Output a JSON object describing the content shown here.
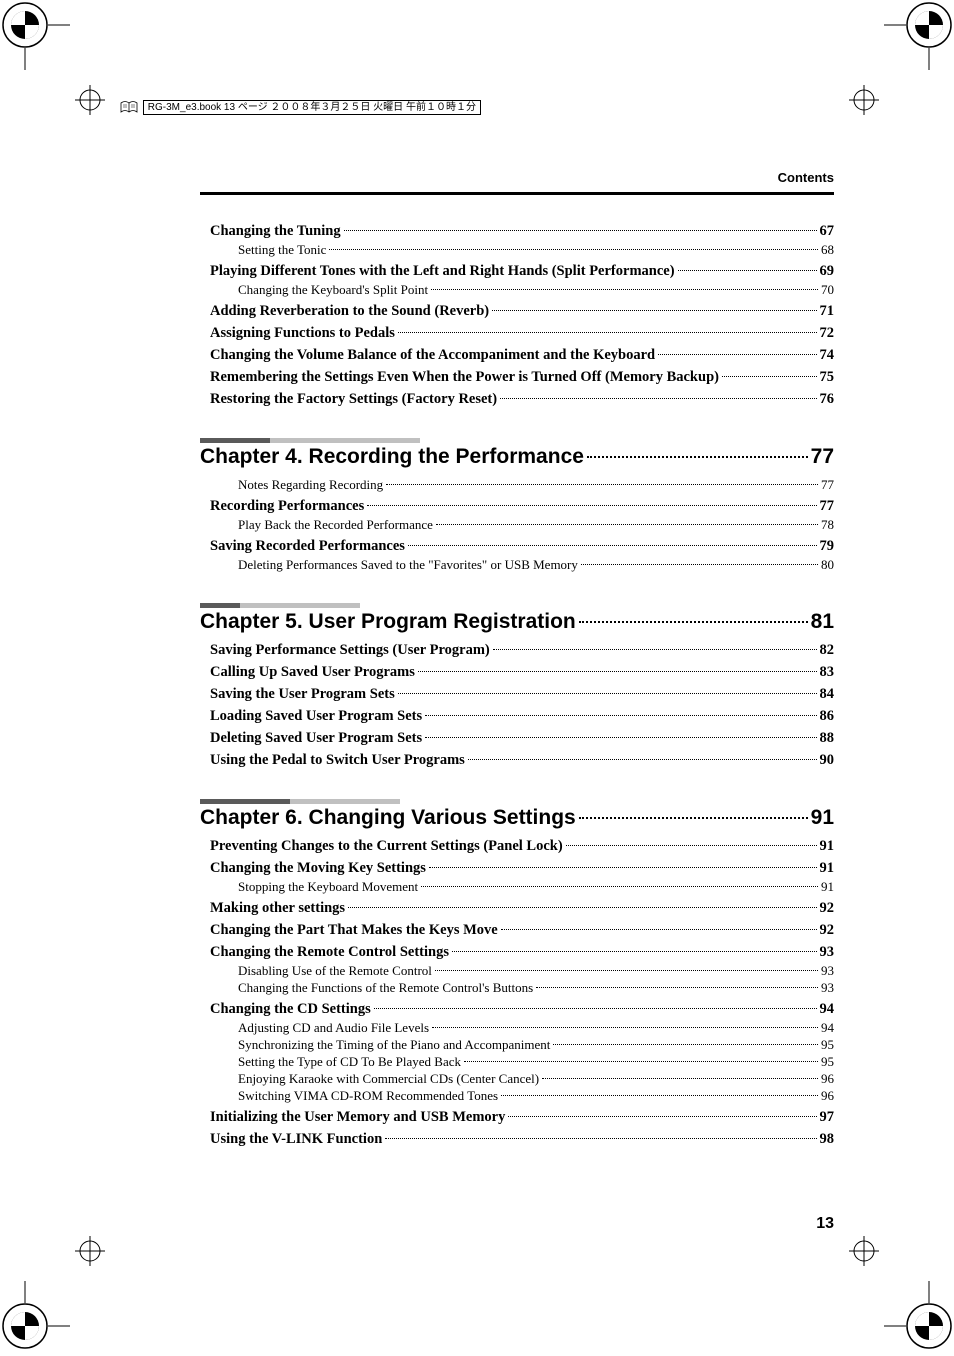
{
  "header": {
    "book_line": "RG-3M_e3.book 13 ページ ２００８年３月２５日 火曜日 午前１０時１分",
    "section_label": "Contents"
  },
  "intro_items": [
    {
      "level": 1,
      "label": "Changing the Tuning",
      "page": "67"
    },
    {
      "level": 2,
      "label": "Setting the Tonic",
      "page": "68"
    },
    {
      "level": 1,
      "label": "Playing Different Tones with the Left and Right Hands (Split Performance)",
      "page": "69"
    },
    {
      "level": 2,
      "label": "Changing the Keyboard's Split Point",
      "page": "70"
    },
    {
      "level": 1,
      "label": "Adding Reverberation to the Sound (Reverb)",
      "page": "71"
    },
    {
      "level": 1,
      "label": "Assigning Functions to Pedals",
      "page": "72"
    },
    {
      "level": 1,
      "label": "Changing the Volume Balance of the Accompaniment and the Keyboard",
      "page": "74"
    },
    {
      "level": 1,
      "label": "Remembering the Settings Even When the Power is Turned Off (Memory Backup)",
      "page": "75"
    },
    {
      "level": 1,
      "label": "Restoring the Factory Settings (Factory Reset)",
      "page": "76"
    }
  ],
  "chapters": [
    {
      "title": "Chapter 4. Recording the Performance",
      "page": "77",
      "bars": [
        70,
        150
      ],
      "items": [
        {
          "level": 2,
          "label": "Notes Regarding Recording",
          "page": "77"
        },
        {
          "level": 1,
          "label": "Recording Performances",
          "page": "77"
        },
        {
          "level": 2,
          "label": "Play Back the Recorded Performance",
          "page": "78"
        },
        {
          "level": 1,
          "label": "Saving Recorded Performances",
          "page": "79"
        },
        {
          "level": 2,
          "label": "Deleting Performances Saved to the \"Favorites\" or USB Memory",
          "page": "80"
        }
      ]
    },
    {
      "title": "Chapter 5. User Program Registration",
      "page": "81",
      "bars": [
        40,
        120
      ],
      "items": [
        {
          "level": 1,
          "label": "Saving Performance Settings (User Program)",
          "page": "82"
        },
        {
          "level": 1,
          "label": "Calling Up Saved User Programs",
          "page": "83"
        },
        {
          "level": 1,
          "label": "Saving the User Program Sets",
          "page": "84"
        },
        {
          "level": 1,
          "label": "Loading Saved User Program Sets",
          "page": "86"
        },
        {
          "level": 1,
          "label": "Deleting Saved User Program Sets",
          "page": "88"
        },
        {
          "level": 1,
          "label": "Using the Pedal to Switch User Programs",
          "page": "90"
        }
      ]
    },
    {
      "title": "Chapter 6. Changing Various Settings",
      "page": "91",
      "bars": [
        90,
        110
      ],
      "items": [
        {
          "level": 1,
          "label": "Preventing Changes to the Current Settings (Panel Lock)",
          "page": "91"
        },
        {
          "level": 1,
          "label": "Changing the Moving Key Settings",
          "page": "91"
        },
        {
          "level": 2,
          "label": "Stopping the Keyboard Movement",
          "page": "91"
        },
        {
          "level": 1,
          "label": "Making other settings",
          "page": "92"
        },
        {
          "level": 1,
          "label": "Changing the Part That Makes the Keys Move",
          "page": "92"
        },
        {
          "level": 1,
          "label": "Changing the Remote Control Settings",
          "page": "93"
        },
        {
          "level": 2,
          "label": "Disabling Use of the Remote Control",
          "page": "93"
        },
        {
          "level": 2,
          "label": "Changing the Functions of the Remote Control's Buttons",
          "page": "93"
        },
        {
          "level": 1,
          "label": "Changing the CD Settings",
          "page": "94"
        },
        {
          "level": 2,
          "label": "Adjusting CD and Audio File Levels",
          "page": "94"
        },
        {
          "level": 2,
          "label": "Synchronizing the Timing of the Piano and Accompaniment",
          "page": "95"
        },
        {
          "level": 2,
          "label": "Setting the Type of CD To Be Played Back",
          "page": "95"
        },
        {
          "level": 2,
          "label": "Enjoying Karaoke with Commercial CDs (Center Cancel)",
          "page": "96"
        },
        {
          "level": 2,
          "label": "Switching VIMA CD-ROM Recommended Tones",
          "page": "96"
        },
        {
          "level": 1,
          "label": "Initializing the User Memory and USB Memory",
          "page": "97"
        },
        {
          "level": 1,
          "label": "Using the V-LINK Function",
          "page": "98"
        }
      ]
    }
  ],
  "page_number": "13"
}
